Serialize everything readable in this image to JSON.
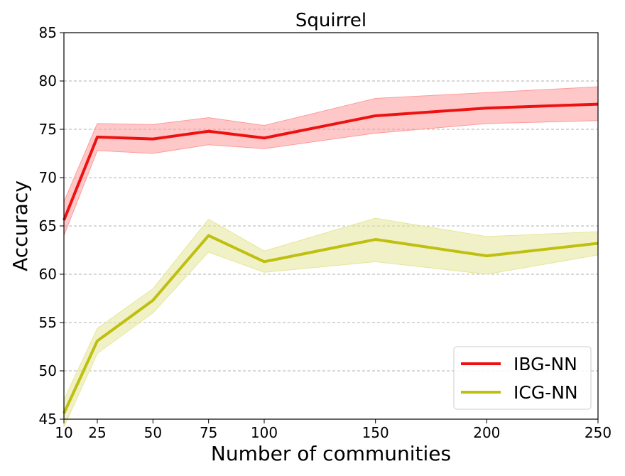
{
  "chart_data": {
    "type": "line",
    "title": "Squirrel",
    "xlabel": "Number of communities",
    "ylabel": "Accuracy",
    "x": [
      10,
      25,
      50,
      75,
      100,
      150,
      200,
      250
    ],
    "xlim": [
      10,
      250
    ],
    "ylim": [
      45,
      85
    ],
    "xticks": [
      10,
      25,
      50,
      75,
      100,
      150,
      200,
      250
    ],
    "yticks": [
      45,
      50,
      55,
      60,
      65,
      70,
      75,
      80,
      85
    ],
    "grid": "horizontal dashed",
    "legend_position": "lower-right",
    "series": [
      {
        "name": "IBG-NN",
        "color": "#ee1111",
        "band_color": "#ff9a9a",
        "values": [
          65.6,
          74.2,
          74.0,
          74.8,
          74.1,
          76.4,
          77.2,
          77.6
        ],
        "lower": [
          64.0,
          72.8,
          72.5,
          73.4,
          73.0,
          74.6,
          75.6,
          75.9
        ],
        "upper": [
          67.5,
          75.6,
          75.5,
          76.2,
          75.4,
          78.2,
          78.8,
          79.4
        ]
      },
      {
        "name": "ICG-NN",
        "color": "#bfbf10",
        "band_color": "#e6e699",
        "values": [
          45.6,
          53.1,
          57.3,
          64.0,
          61.3,
          63.6,
          61.9,
          63.2
        ],
        "lower": [
          44.2,
          51.8,
          56.0,
          62.3,
          60.2,
          61.3,
          60.0,
          62.0
        ],
        "upper": [
          47.0,
          54.4,
          58.5,
          65.7,
          62.4,
          65.8,
          63.9,
          64.4
        ]
      }
    ]
  }
}
